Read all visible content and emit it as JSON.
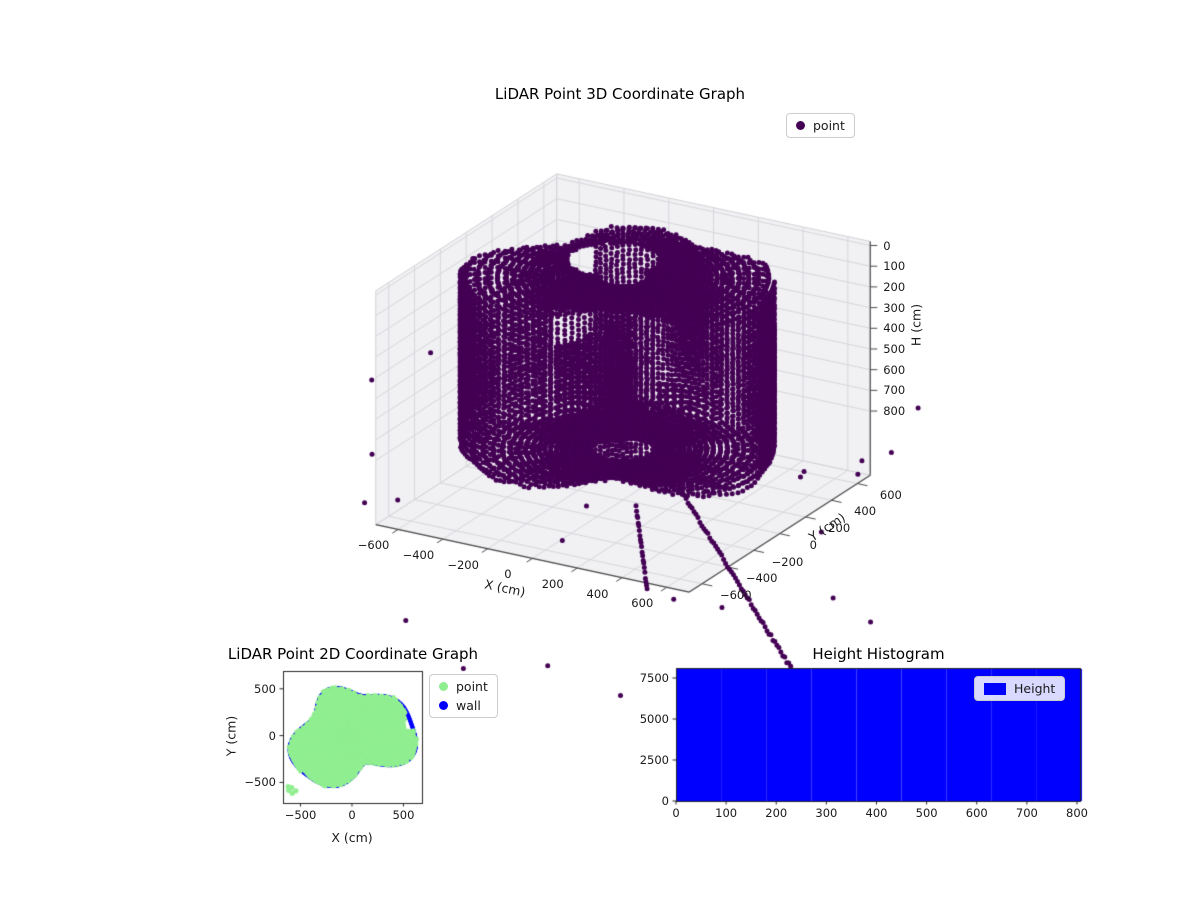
{
  "figure": {
    "background": "#ffffff"
  },
  "chart_data": [
    {
      "id": "lidar-3d",
      "type": "scatter",
      "projection": "3d",
      "title": "LiDAR Point 3D Coordinate Graph",
      "xlabel": "X (cm)",
      "ylabel": "Y (cm)",
      "zlabel": "H (cm)",
      "xlim": [
        -700,
        700
      ],
      "ylim": [
        -700,
        700
      ],
      "zlim": [
        -20,
        1110
      ],
      "z_axis_inverted": true,
      "xticks": [
        -600,
        -400,
        -200,
        0,
        200,
        400,
        600
      ],
      "yticks": [
        -600,
        -400,
        -200,
        0,
        200,
        400,
        600
      ],
      "zticks": [
        0,
        100,
        200,
        300,
        400,
        500,
        600,
        700,
        800
      ],
      "legend": [
        {
          "label": "point",
          "color": "#440154"
        }
      ],
      "point_color": "#440154",
      "approx_point_count": 10500,
      "sim": {
        "seed": 7,
        "azimuth_steps": 144,
        "elev_min_deg": -74,
        "elev_max_deg": 76,
        "elev_step_deg": 2.05,
        "sensor_h": 420,
        "ceiling_h": 30,
        "floor_h": 860,
        "wall_r_base": 520,
        "wall_r_harmonics": [
          [
            2,
            90,
            0.8
          ],
          [
            3,
            70,
            2.1
          ],
          [
            5,
            45,
            4.0
          ]
        ],
        "ceiling_hole": {
          "x": -120,
          "y": 140,
          "r": 180
        },
        "wall_gaps": [
          [
            2.35,
            2.75,
            520
          ],
          [
            5.5,
            5.82,
            330
          ],
          [
            0.5,
            0.72,
            260
          ]
        ],
        "streaks": [
          {
            "theta": -0.55,
            "r0": 480,
            "r1": 1380,
            "step": 16,
            "h0": 880,
            "slope": 0.55
          },
          {
            "theta": -0.95,
            "r0": 520,
            "r1": 980,
            "step": 22,
            "h0": 900,
            "slope": 0.45
          }
        ],
        "outlier_count": 30,
        "outlier_r": [
          680,
          1200
        ],
        "outlier_h": [
          420,
          1600
        ]
      }
    },
    {
      "id": "lidar-2d",
      "type": "scatter",
      "title": "LiDAR Point 2D Coordinate Graph",
      "xlabel": "X (cm)",
      "ylabel": "Y (cm)",
      "xlim": [
        -670,
        680
      ],
      "ylim": [
        -720,
        690
      ],
      "xticks": [
        -500,
        0,
        500
      ],
      "yticks": [
        -500,
        0,
        500
      ],
      "legend": [
        {
          "label": "point",
          "color": "#90ee90"
        },
        {
          "label": "wall",
          "color": "#0000ff"
        }
      ],
      "sim": {
        "seed": 11,
        "azimuth_step_rad": 0.024,
        "radial_step": 28,
        "wall_r_base": 520,
        "wall_r_harmonics": [
          [
            2,
            90,
            0.8
          ],
          [
            3,
            70,
            2.1
          ],
          [
            5,
            45,
            4.0
          ]
        ],
        "holes": [
          {
            "x": -470,
            "y": 530,
            "r": 125
          }
        ],
        "notch": {
          "xmin": 520,
          "ymin": 60,
          "ymax": 300
        },
        "cluster": [
          [
            -615,
            -585
          ],
          [
            -580,
            -615
          ],
          [
            -545,
            -590
          ],
          [
            -620,
            -545
          ],
          [
            -585,
            -555
          ]
        ]
      }
    },
    {
      "id": "height-histogram",
      "type": "histogram",
      "title": "Height Histogram",
      "legend": [
        {
          "label": "Height",
          "color": "#0000ff"
        }
      ],
      "bar_color": "#0000ff",
      "xlim": [
        0,
        806
      ],
      "ylim": [
        0,
        8110
      ],
      "xticks": [
        0,
        100,
        200,
        300,
        400,
        500,
        600,
        700,
        800
      ],
      "yticks": [
        0,
        2500,
        5000,
        7500
      ],
      "bin_edges": [
        0,
        90,
        180,
        270,
        360,
        450,
        540,
        630,
        720,
        810
      ],
      "counts_estimated": [
        8100,
        8100,
        8100,
        8100,
        8100,
        8100,
        8100,
        8100,
        8100
      ]
    }
  ]
}
